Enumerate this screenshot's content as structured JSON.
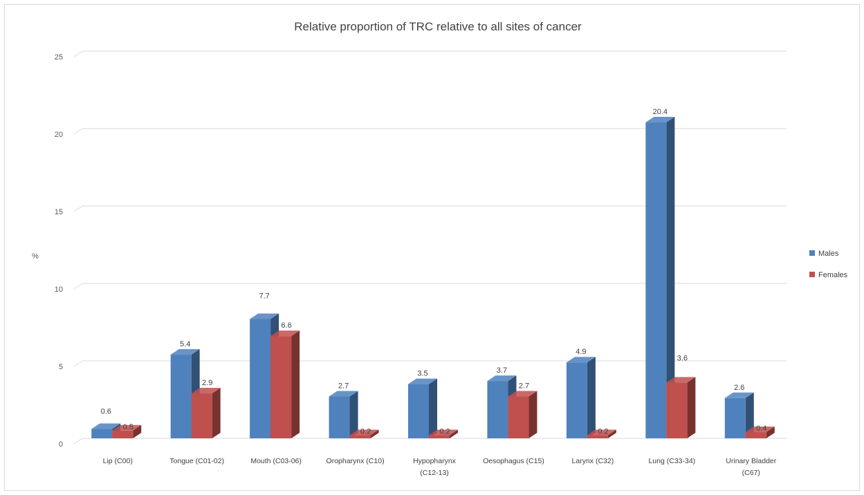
{
  "chart_data": {
    "type": "bar",
    "title": "Relative proportion of TRC relative to all sites of cancer",
    "ylabel": "%",
    "xlabel": "",
    "ylim": [
      0,
      25
    ],
    "yticks": [
      0,
      5,
      10,
      15,
      20,
      25
    ],
    "grid": true,
    "legend_position": "right",
    "categories": [
      "Lip (C00)",
      "Tongue (C01-02)",
      "Mouth (C03-06)",
      "Oropharynx (C10)",
      "Hypopharynx (C12-13)",
      "Oesophagus (C15)",
      "Larynx (C32)",
      "Lung (C33-34)",
      "Urinary Bladder (C67)"
    ],
    "series": [
      {
        "name": "Males",
        "color": "#4f81bd",
        "values": [
          0.6,
          5.4,
          7.7,
          2.7,
          3.5,
          3.7,
          4.9,
          20.4,
          2.6
        ],
        "labels": [
          "0.6",
          "5.4",
          "7.7",
          "2.7",
          "3.5",
          "3.7",
          "4.9",
          "20.4",
          "2.6"
        ]
      },
      {
        "name": "Females",
        "color": "#c0504d",
        "values": [
          0.5,
          2.9,
          6.6,
          0.2,
          0.2,
          2.7,
          0.2,
          3.6,
          0.4
        ],
        "labels": [
          "0.5",
          "2.9",
          "6.6",
          "0.2",
          "0.2",
          "2.7",
          "0.2",
          "3.6",
          "0.4"
        ]
      }
    ]
  }
}
